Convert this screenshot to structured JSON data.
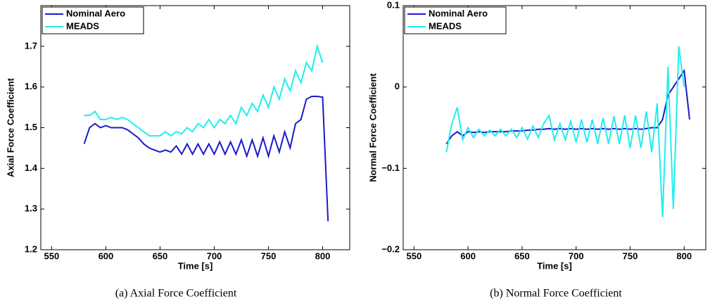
{
  "chart_data": [
    {
      "type": "line",
      "caption": "(a)  Axial Force Coefficient",
      "xlabel": "Time [s]",
      "ylabel": "Axial Force Coefficient",
      "xlim": [
        540,
        825
      ],
      "xticks": [
        550,
        600,
        650,
        700,
        750,
        800
      ],
      "ylim": [
        1.2,
        1.8
      ],
      "yticks": [
        1.2,
        1.3,
        1.4,
        1.5,
        1.6,
        1.7
      ],
      "legend": "upper left",
      "x": [
        580,
        585,
        590,
        595,
        600,
        605,
        610,
        615,
        620,
        625,
        630,
        635,
        640,
        645,
        650,
        655,
        660,
        665,
        670,
        675,
        680,
        685,
        690,
        695,
        700,
        705,
        710,
        715,
        720,
        725,
        730,
        735,
        740,
        745,
        750,
        755,
        760,
        765,
        770,
        775,
        780,
        785,
        790,
        795,
        800,
        805
      ],
      "series": [
        {
          "name": "Nominal Aero",
          "color": "#1a1acc",
          "values": [
            1.46,
            1.5,
            1.51,
            1.5,
            1.505,
            1.5,
            1.5,
            1.5,
            1.495,
            1.485,
            1.475,
            1.46,
            1.45,
            1.445,
            1.44,
            1.445,
            1.44,
            1.455,
            1.435,
            1.46,
            1.435,
            1.46,
            1.435,
            1.46,
            1.435,
            1.465,
            1.435,
            1.465,
            1.435,
            1.47,
            1.43,
            1.47,
            1.43,
            1.475,
            1.43,
            1.48,
            1.44,
            1.49,
            1.45,
            1.51,
            1.52,
            1.57,
            1.577,
            1.577,
            1.575,
            1.27
          ]
        },
        {
          "name": "MEADS",
          "color": "#22eeee",
          "values": [
            1.53,
            1.53,
            1.54,
            1.52,
            1.52,
            1.525,
            1.52,
            1.525,
            1.52,
            1.51,
            1.5,
            1.49,
            1.48,
            1.48,
            1.48,
            1.49,
            1.48,
            1.49,
            1.485,
            1.5,
            1.49,
            1.51,
            1.5,
            1.52,
            1.5,
            1.52,
            1.51,
            1.53,
            1.51,
            1.55,
            1.53,
            1.56,
            1.54,
            1.58,
            1.55,
            1.6,
            1.57,
            1.62,
            1.59,
            1.64,
            1.61,
            1.66,
            1.64,
            1.7,
            1.66,
            null
          ]
        }
      ]
    },
    {
      "type": "line",
      "caption": "(b)  Normal Force Coefficient",
      "xlabel": "Time [s]",
      "ylabel": "Normal Force Coefficient",
      "xlim": [
        540,
        820
      ],
      "xticks": [
        550,
        600,
        650,
        700,
        750,
        800
      ],
      "ylim": [
        -0.2,
        0.1
      ],
      "yticks": [
        {
          "value": -0.2,
          "label": "−0.2"
        },
        {
          "value": -0.1,
          "label": "−0.1"
        },
        0,
        0.1
      ],
      "legend": "upper left",
      "x": [
        580,
        585,
        590,
        595,
        600,
        605,
        610,
        615,
        620,
        625,
        630,
        635,
        640,
        645,
        650,
        655,
        660,
        665,
        670,
        675,
        680,
        685,
        690,
        695,
        700,
        705,
        710,
        715,
        720,
        725,
        730,
        735,
        740,
        745,
        750,
        755,
        760,
        765,
        770,
        775,
        780,
        785,
        790,
        795,
        800,
        805
      ],
      "series": [
        {
          "name": "Nominal Aero",
          "color": "#1a1acc",
          "values": [
            -0.07,
            -0.06,
            -0.055,
            -0.06,
            -0.055,
            -0.056,
            -0.055,
            -0.056,
            -0.055,
            -0.055,
            -0.055,
            -0.055,
            -0.054,
            -0.054,
            -0.054,
            -0.053,
            -0.053,
            -0.052,
            -0.052,
            -0.051,
            -0.052,
            -0.051,
            -0.052,
            -0.051,
            -0.052,
            -0.051,
            -0.052,
            -0.051,
            -0.052,
            -0.051,
            -0.052,
            -0.051,
            -0.052,
            -0.051,
            -0.052,
            -0.051,
            -0.052,
            -0.051,
            -0.05,
            -0.05,
            -0.04,
            -0.01,
            0.0,
            0.01,
            0.02,
            -0.04
          ]
        },
        {
          "name": "MEADS",
          "color": "#22eeee",
          "values": [
            -0.08,
            -0.045,
            -0.025,
            -0.065,
            -0.05,
            -0.062,
            -0.052,
            -0.06,
            -0.053,
            -0.06,
            -0.052,
            -0.06,
            -0.052,
            -0.062,
            -0.05,
            -0.064,
            -0.048,
            -0.062,
            -0.045,
            -0.035,
            -0.065,
            -0.045,
            -0.065,
            -0.042,
            -0.068,
            -0.04,
            -0.068,
            -0.04,
            -0.07,
            -0.038,
            -0.07,
            -0.036,
            -0.07,
            -0.035,
            -0.075,
            -0.035,
            -0.075,
            -0.03,
            -0.08,
            -0.02,
            -0.16,
            0.025,
            -0.15,
            0.05,
            0.0,
            null
          ]
        }
      ]
    }
  ]
}
